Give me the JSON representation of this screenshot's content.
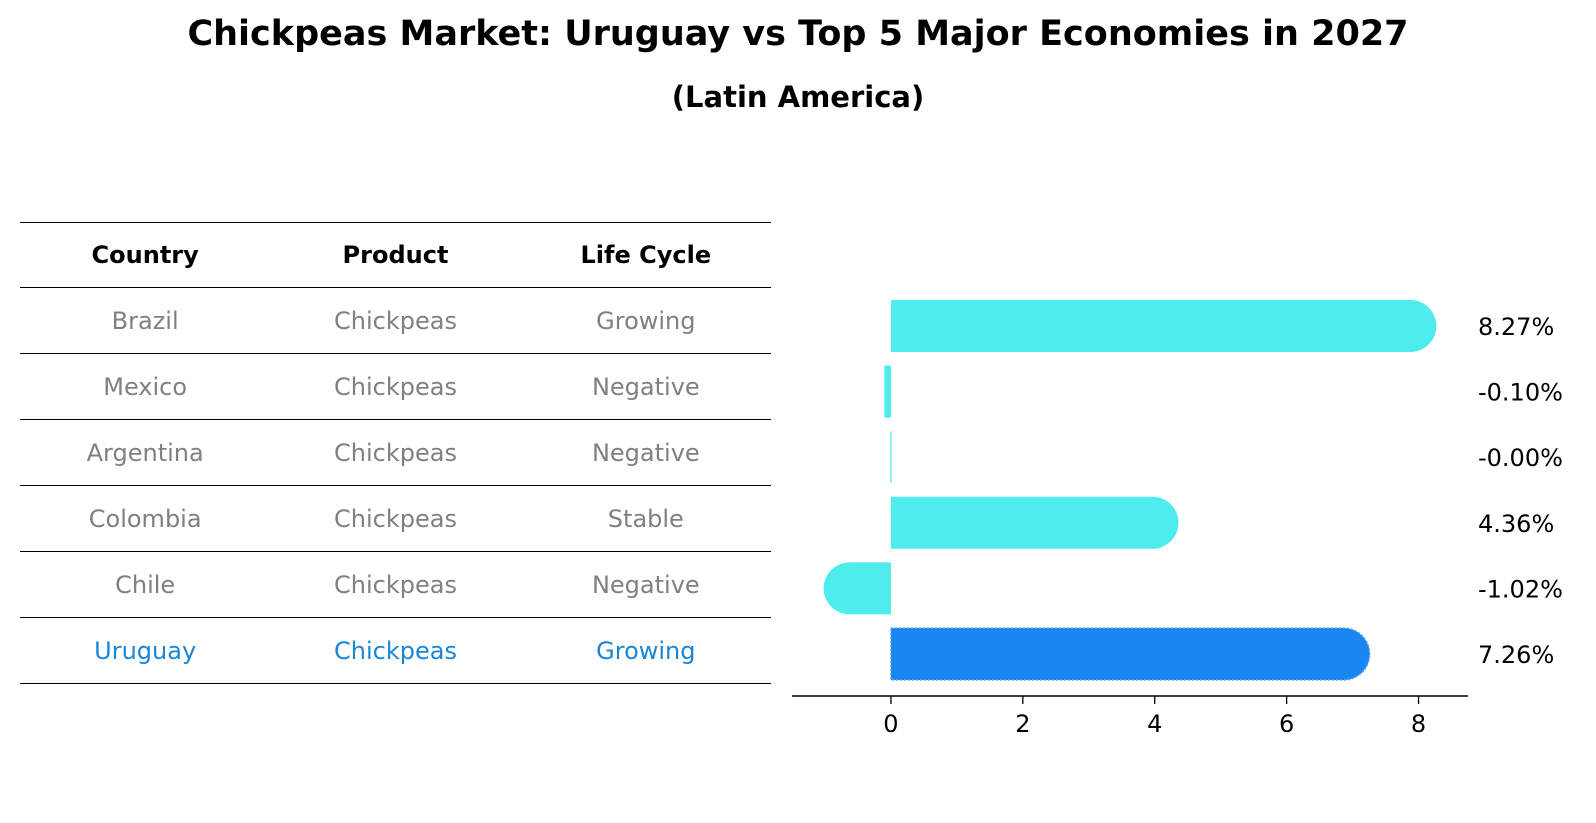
{
  "title": "Chickpeas Market: Uruguay vs Top 5 Major Economies in 2027",
  "subtitle": "(Latin America)",
  "table": {
    "headers": [
      "Country",
      "Product",
      "Life Cycle"
    ],
    "rows": [
      [
        "Brazil",
        "Chickpeas",
        "Growing"
      ],
      [
        "Mexico",
        "Chickpeas",
        "Negative"
      ],
      [
        "Argentina",
        "Chickpeas",
        "Negative"
      ],
      [
        "Colombia",
        "Chickpeas",
        "Stable"
      ],
      [
        "Chile",
        "Chickpeas",
        "Negative"
      ],
      [
        "Uruguay",
        "Chickpeas",
        "Growing"
      ]
    ],
    "highlight_row": 5
  },
  "chart_data": {
    "type": "bar",
    "orientation": "horizontal",
    "categories": [
      "Brazil",
      "Mexico",
      "Argentina",
      "Colombia",
      "Chile",
      "Uruguay"
    ],
    "values": [
      8.27,
      -0.1,
      -0.0,
      4.36,
      -1.02,
      7.26
    ],
    "value_labels": [
      "8.27%",
      "-0.10%",
      "-0.00%",
      "4.36%",
      "-1.02%",
      "7.26%"
    ],
    "xlim": [
      -1.5,
      8.75
    ],
    "xticks": [
      0,
      2,
      4,
      6,
      8
    ],
    "grid": false,
    "colors": {
      "default": "#4eecec",
      "highlight": "#1a86f2"
    },
    "highlight_index": 5
  }
}
